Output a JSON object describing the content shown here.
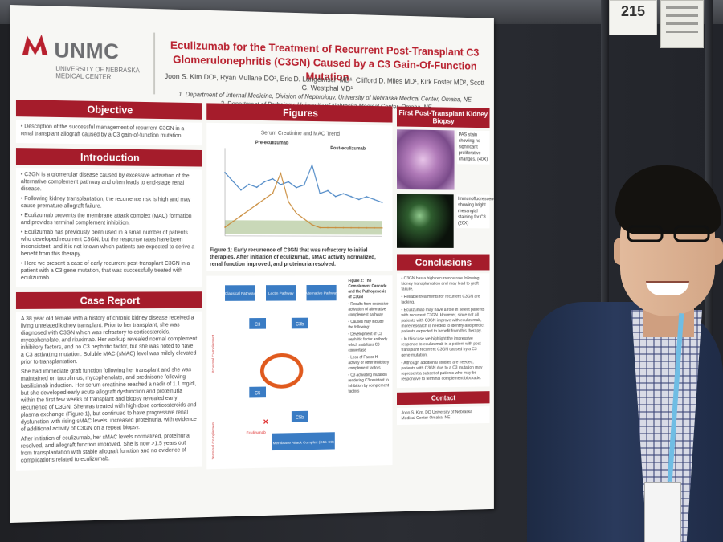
{
  "booth": {
    "number": "215"
  },
  "poster": {
    "org_name": "UNMC",
    "org_sub": "UNIVERSITY OF NEBRASKA MEDICAL CENTER",
    "title": "Eculizumab for the Treatment of Recurrent Post-Transplant C3 Glomerulonephritis (C3GN) Caused by a C3 Gain-Of-Function Mutation",
    "authors": "Joon S. Kim DO¹, Ryan Mullane DO², Eric D. Langewisch MD¹, Clifford D. Miles MD¹, Kirk Foster MD², Scott G. Westphal MD¹",
    "affiliation_1": "1. Department of Internal Medicine, Division of Nephrology, University of Nebraska Medical Center, Omaha, NE",
    "affiliation_2": "2. Department of Pathology, University of Nebraska Medical Center, Omaha, NE",
    "objective": {
      "heading": "Objective",
      "text": "Description of the successful management of recurrent C3GN in a renal transplant allograft caused by a C3 gain-of-function mutation."
    },
    "introduction": {
      "heading": "Introduction",
      "bullets": [
        "C3GN is a glomerular disease caused by excessive activation of the alternative complement pathway and often leads to end-stage renal disease.",
        "Following kidney transplantation, the recurrence risk is high and may cause premature allograft failure.",
        "Eculizumab prevents the membrane attack complex (MAC) formation and provides terminal complement inhibition.",
        "Eculizumab has previously been used in a small number of patients who developed recurrent C3GN, but the response rates have been inconsistent, and it is not known which patients are expected to derive a benefit from this therapy.",
        "Here we present a case of early recurrent post-transplant C3GN in a patient with a C3 gene mutation, that was successfully treated with eculizumab."
      ]
    },
    "case_report": {
      "heading": "Case Report",
      "paragraphs": [
        "A 38 year old female with a history of chronic kidney disease received a living unrelated kidney transplant. Prior to her transplant, she was diagnosed with C3GN which was refractory to corticosteroids, mycophenolate, and rituximab. Her workup revealed normal complement inhibitory factors, and no C3 nephritic factor, but she was noted to have a C3 activating mutation. Soluble MAC (sMAC) level was mildly elevated prior to transplantation.",
        "She had immediate graft function following her transplant and she was maintained on tacrolimus, mycophenolate, and prednisone following basiliximab induction. Her serum creatinine reached a nadir of 1.1 mg/dl, but she developed early acute allograft dysfunction and proteinuria within the first few weeks of transplant and biopsy revealed early recurrence of C3GN. She was treated with high dose corticosteroids and plasma exchange (Figure 1), but continued to have progressive renal dysfunction with rising sMAC levels, increased proteinuria, with evidence of additional activity of C3GN on a repeat biopsy.",
        "After initiation of eculizumab, her sMAC levels normalized, proteinuria resolved, and allograft function improved. She is now >1.5 years out from transplantation with stable allograft function and no evidence of complications related to eculizumab."
      ]
    },
    "figures": {
      "heading": "Figures",
      "chart_title": "Serum Creatinine and MAC Trend",
      "pre_label": "Pre-eculizumab",
      "post_label": "Post-eculizumab",
      "caption": "Figure 1: Early recurrence of C3GN that was refractory to initial therapies. After initiation of eculizumab, sMAC activity normalized, renal function improved, and proteinuria resolved.",
      "fig2_title": "Figure 2: The Complement Cascade and the Pathogenesis of C3GN",
      "fig2_notes": [
        "Results from excessive activation of alternative complement pathway",
        "Causes may include the following:",
        "Development of C3 nephritic factor antibody which stabilizes C3 convertase",
        "Loss of Factor H activity or other inhibitory complement factors",
        "C3 activating mutation rendering C3 resistant to inhibition by complement factors"
      ],
      "diagram": {
        "classical": "Classical Pathway",
        "lectin": "Lectin Pathway",
        "alternative": "Alternative Pathway",
        "c3": "C3",
        "c3b": "C3b",
        "c5": "C5",
        "c5b": "C5b",
        "drug": "Eculizumab",
        "mac": "Membrane Attack Complex (C5b-C9)",
        "proximal": "Proximal Complement",
        "terminal": "Terminal Complement"
      }
    },
    "biopsy": {
      "heading": "First Post-Transplant Kidney Biopsy",
      "note_1": "PAS stain showing no significant proliferative changes. (40X)",
      "note_2": "Immunofluorescence showing bright mesangial staining for C3. (20X)"
    },
    "conclusions": {
      "heading": "Conclusions",
      "bullets": [
        "C3GN has a high recurrence rate following kidney transplantation and may lead to graft failure.",
        "Reliable treatments for recurrent C3GN are lacking.",
        "Eculizumab may have a role in select patients with recurrent C3GN. However, since not all patients with C3GN improve with eculizumab, more research is needed to identify and predict patients expected to benefit from this therapy.",
        "In this case we highlight the impressive response to eculizumab in a patient with post-transplant recurrent C3GN caused by a C3 gene mutation.",
        "Although additional studies are needed, patients with C3GN due to a C3 mutation may represent a subset of patients who may be responsive to terminal complement blockade."
      ]
    },
    "contact": {
      "heading": "Contact",
      "text": "Joon S. Kim, DO University of Nebraska Medical Center Omaha, NE"
    }
  },
  "chart_data": {
    "type": "line",
    "title": "Serum Creatinine and MAC Trend",
    "x": [
      0,
      2,
      4,
      6,
      8,
      10,
      12,
      14,
      16,
      18,
      20,
      22,
      24,
      26,
      28,
      30,
      32,
      34,
      36,
      38,
      40
    ],
    "series": [
      {
        "values": [
          2.2,
          1.9,
          1.6,
          1.8,
          1.7,
          1.9,
          2.0,
          1.8,
          1.9,
          1.7,
          1.8,
          2.5,
          1.5,
          1.6,
          1.4,
          1.5,
          1.4,
          1.3,
          1.4,
          1.3,
          1.2
        ]
      },
      {
        "values": [
          0.3,
          0.5,
          0.7,
          0.9,
          1.1,
          1.3,
          1.5,
          2.2,
          1.2,
          0.8,
          0.6,
          0.4,
          0.3,
          0.3,
          0.3,
          0.3,
          0.3,
          0.3,
          0.3,
          0.3,
          0.3
        ]
      }
    ],
    "ylim": [
      0,
      3
    ]
  }
}
